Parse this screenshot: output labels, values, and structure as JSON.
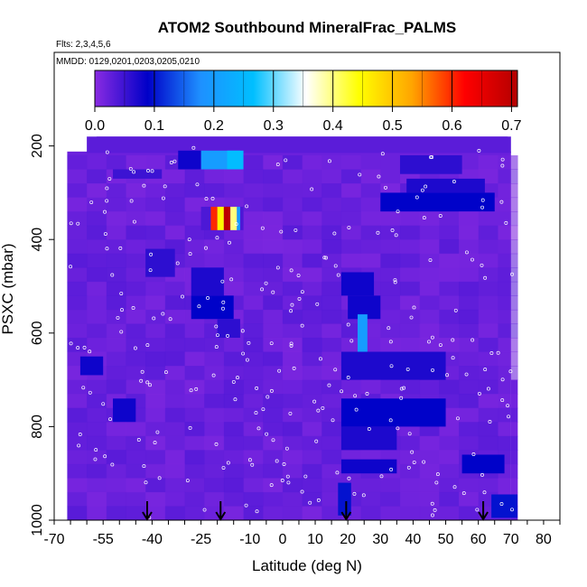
{
  "header": {
    "title": "ATOM2 Southbound MineralFrac_PALMS",
    "flights": "Flts: 2,3,4,5,6",
    "dates": "MMDD: 0129,0201,0203,0205,0210"
  },
  "colorbar": {
    "ticks": [
      "0.0",
      "0.1",
      "0.2",
      "0.3",
      "0.4",
      "0.5",
      "0.6",
      "0.7"
    ],
    "range": [
      0,
      0.71
    ],
    "colors": [
      "#8a2be2",
      "#0000c8",
      "#1e90ff",
      "#00bfff",
      "#ffffff",
      "#ffff00",
      "#ffa500",
      "#ff0000",
      "#b40000"
    ]
  },
  "chart_data": {
    "type": "heatmap",
    "title": "ATOM2 Southbound MineralFrac_PALMS",
    "xlabel": "Latitude (deg N)",
    "ylabel": "PSXC (mbar)",
    "xlim": [
      -70,
      85
    ],
    "ylim": [
      1000,
      0
    ],
    "x_ticks": [
      "-70",
      "-55",
      "-40",
      "-25",
      "-10",
      "0",
      "10",
      "20",
      "30",
      "40",
      "50",
      "60",
      "70",
      "80"
    ],
    "x_tick_values": [
      -70,
      -55,
      -40,
      -25,
      -10,
      0,
      10,
      20,
      30,
      40,
      50,
      60,
      70,
      80
    ],
    "y_ticks": [
      "200",
      "400",
      "600",
      "800",
      "1000"
    ],
    "y_tick_values": [
      200,
      400,
      600,
      800,
      1000
    ],
    "background_value": 0.02,
    "cells": [
      {
        "lat": [
          -60,
          70
        ],
        "p": [
          180,
          215
        ],
        "v": 0.03
      },
      {
        "lat": [
          -25,
          -13
        ],
        "p": [
          210,
          250
        ],
        "v": 0.2
      },
      {
        "lat": [
          -17,
          -12
        ],
        "p": [
          210,
          250
        ],
        "v": 0.26
      },
      {
        "lat": [
          -32,
          -25
        ],
        "p": [
          210,
          250
        ],
        "v": 0.08
      },
      {
        "lat": [
          -52,
          -37
        ],
        "p": [
          250,
          270
        ],
        "v": 0.05
      },
      {
        "lat": [
          36,
          55
        ],
        "p": [
          220,
          260
        ],
        "v": 0.06
      },
      {
        "lat": [
          38,
          62
        ],
        "p": [
          270,
          300
        ],
        "v": 0.07
      },
      {
        "lat": [
          30,
          65
        ],
        "p": [
          300,
          340
        ],
        "v": 0.09
      },
      {
        "lat": [
          -25,
          -12
        ],
        "p": [
          330,
          380
        ],
        "v": 0.04
      },
      {
        "lat": [
          -22,
          -20
        ],
        "p": [
          330,
          380
        ],
        "v": 0.6
      },
      {
        "lat": [
          -20,
          -18
        ],
        "p": [
          330,
          380
        ],
        "v": 0.45
      },
      {
        "lat": [
          -18,
          -16
        ],
        "p": [
          330,
          380
        ],
        "v": 0.7
      },
      {
        "lat": [
          -16,
          -14
        ],
        "p": [
          330,
          380
        ],
        "v": 0.4
      },
      {
        "lat": [
          -14,
          -13
        ],
        "p": [
          330,
          380
        ],
        "v": 0.2
      },
      {
        "lat": [
          -42,
          -33
        ],
        "p": [
          420,
          480
        ],
        "v": 0.06
      },
      {
        "lat": [
          -28,
          -18
        ],
        "p": [
          460,
          520
        ],
        "v": 0.07
      },
      {
        "lat": [
          18,
          28
        ],
        "p": [
          470,
          520
        ],
        "v": 0.08
      },
      {
        "lat": [
          -28,
          -15
        ],
        "p": [
          520,
          570
        ],
        "v": 0.09
      },
      {
        "lat": [
          20,
          30
        ],
        "p": [
          520,
          570
        ],
        "v": 0.08
      },
      {
        "lat": [
          23,
          26
        ],
        "p": [
          560,
          660
        ],
        "v": 0.2
      },
      {
        "lat": [
          -20,
          -13
        ],
        "p": [
          570,
          610
        ],
        "v": 0.06
      },
      {
        "lat": [
          -62,
          -55
        ],
        "p": [
          650,
          690
        ],
        "v": 0.08
      },
      {
        "lat": [
          18,
          50
        ],
        "p": [
          640,
          700
        ],
        "v": 0.07
      },
      {
        "lat": [
          -52,
          -45
        ],
        "p": [
          740,
          790
        ],
        "v": 0.08
      },
      {
        "lat": [
          18,
          50
        ],
        "p": [
          740,
          800
        ],
        "v": 0.09
      },
      {
        "lat": [
          18,
          35
        ],
        "p": [
          800,
          850
        ],
        "v": 0.07
      },
      {
        "lat": [
          18,
          35
        ],
        "p": [
          870,
          900
        ],
        "v": 0.08
      },
      {
        "lat": [
          55,
          68
        ],
        "p": [
          860,
          900
        ],
        "v": 0.09
      },
      {
        "lat": [
          17,
          21
        ],
        "p": [
          920,
          990
        ],
        "v": 0.1
      },
      {
        "lat": [
          64,
          72
        ],
        "p": [
          945,
          995
        ],
        "v": 0.1
      }
    ],
    "arrows_lat": [
      -41.5,
      -19,
      19.5,
      61.5
    ]
  }
}
